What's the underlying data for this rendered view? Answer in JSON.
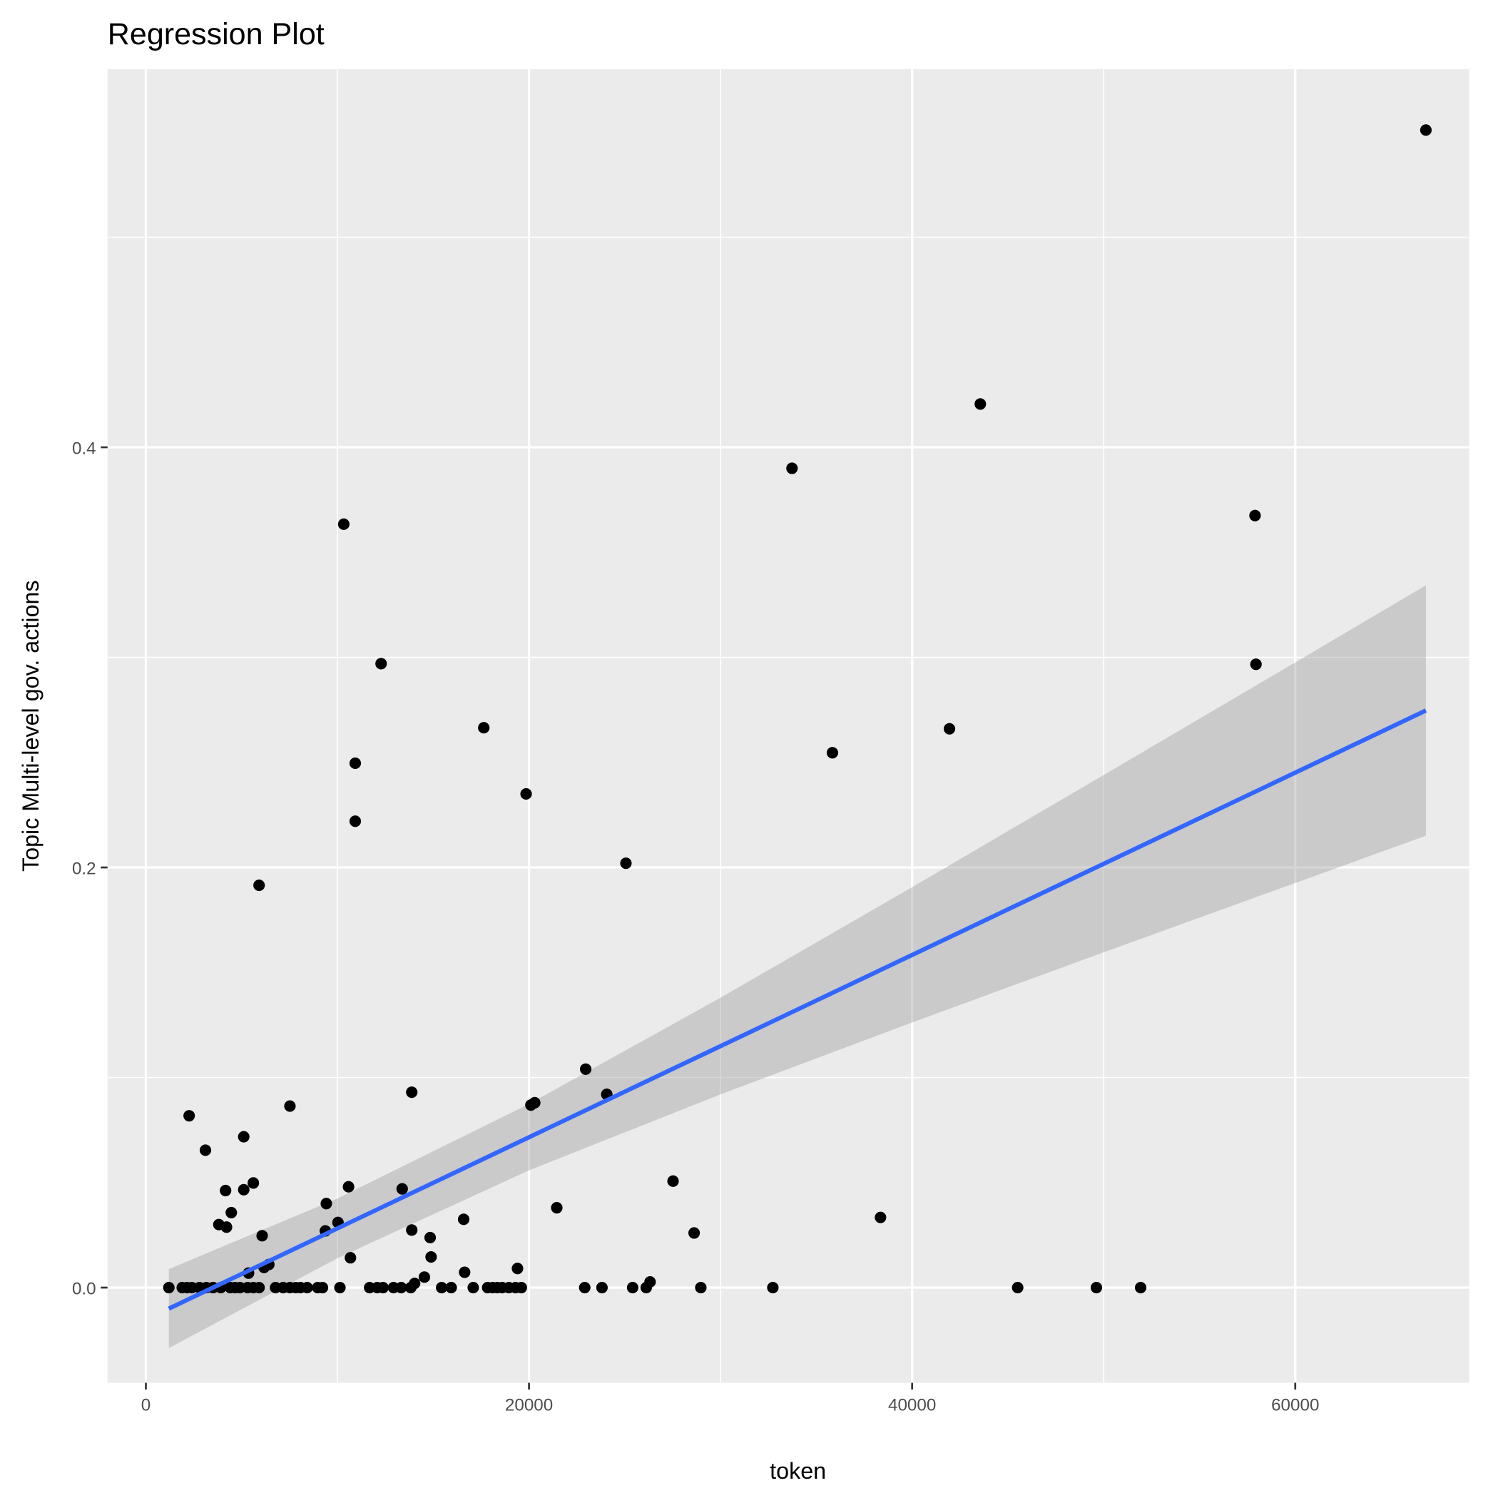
{
  "chart_data": {
    "type": "scatter",
    "title": "Regression Plot",
    "xlabel": "token",
    "ylabel": "Topic Multi-level gov. actions",
    "xlim": [
      -2000,
      69080
    ],
    "ylim": [
      -0.0453,
      0.58
    ],
    "x_ticks": [
      0,
      20000,
      40000,
      60000
    ],
    "x_tick_labels": [
      "0",
      "20000",
      "40000",
      "60000"
    ],
    "x_minor": [
      10000,
      30000,
      50000
    ],
    "y_ticks": [
      0.0,
      0.2,
      0.4
    ],
    "y_tick_labels": [
      "0.0",
      "0.2",
      "0.4"
    ],
    "y_minor": [
      0.1,
      0.3,
      0.5
    ],
    "grid": true,
    "colors": {
      "panel": "#EBEBEB",
      "grid": "#FFFFFF",
      "points": "#000000",
      "line": "#3366FF",
      "ribbon": "#999999"
    },
    "points": [
      [
        66820,
        0.551
      ],
      [
        43560,
        0.4206
      ],
      [
        33730,
        0.39
      ],
      [
        10330,
        0.3634
      ],
      [
        57900,
        0.3675
      ],
      [
        12280,
        0.297
      ],
      [
        57950,
        0.2967
      ],
      [
        17640,
        0.2665
      ],
      [
        41950,
        0.266
      ],
      [
        35840,
        0.2546
      ],
      [
        10930,
        0.2496
      ],
      [
        19850,
        0.235
      ],
      [
        10930,
        0.222
      ],
      [
        25060,
        0.202
      ],
      [
        5910,
        0.1915
      ],
      [
        22960,
        0.104
      ],
      [
        13880,
        0.093
      ],
      [
        24060,
        0.092
      ],
      [
        20300,
        0.088
      ],
      [
        20100,
        0.0869
      ],
      [
        7520,
        0.0864
      ],
      [
        2260,
        0.0818
      ],
      [
        3110,
        0.0654
      ],
      [
        5110,
        0.0718
      ],
      [
        27520,
        0.0507
      ],
      [
        5610,
        0.0498
      ],
      [
        4160,
        0.0462
      ],
      [
        5110,
        0.0466
      ],
      [
        10580,
        0.048
      ],
      [
        13380,
        0.047
      ],
      [
        9420,
        0.04
      ],
      [
        21450,
        0.038
      ],
      [
        4460,
        0.0357
      ],
      [
        3810,
        0.03
      ],
      [
        4210,
        0.0288
      ],
      [
        10030,
        0.031
      ],
      [
        9370,
        0.027
      ],
      [
        16590,
        0.0325
      ],
      [
        38350,
        0.0334
      ],
      [
        28620,
        0.026
      ],
      [
        6070,
        0.0247
      ],
      [
        13880,
        0.0274
      ],
      [
        14840,
        0.0238
      ],
      [
        14890,
        0.0146
      ],
      [
        10680,
        0.0142
      ],
      [
        19400,
        0.0091
      ],
      [
        16640,
        0.0073
      ],
      [
        6420,
        0.011
      ],
      [
        6170,
        0.0096
      ],
      [
        5360,
        0.0069
      ],
      [
        14540,
        0.005
      ],
      [
        26320,
        0.0027
      ],
      [
        14030,
        0.002
      ],
      [
        1200,
        0
      ],
      [
        1900,
        0
      ],
      [
        2150,
        0
      ],
      [
        2400,
        0
      ],
      [
        2800,
        0
      ],
      [
        3160,
        0
      ],
      [
        3510,
        0
      ],
      [
        3910,
        0
      ],
      [
        4410,
        0
      ],
      [
        4660,
        0
      ],
      [
        4910,
        0
      ],
      [
        5310,
        0
      ],
      [
        5610,
        0
      ],
      [
        5910,
        0
      ],
      [
        6770,
        0
      ],
      [
        7170,
        0
      ],
      [
        7520,
        0
      ],
      [
        7820,
        0
      ],
      [
        8070,
        0
      ],
      [
        8420,
        0
      ],
      [
        8970,
        0
      ],
      [
        9220,
        0
      ],
      [
        10130,
        0
      ],
      [
        11680,
        0
      ],
      [
        12080,
        0
      ],
      [
        12380,
        0
      ],
      [
        12930,
        0
      ],
      [
        13330,
        0
      ],
      [
        13830,
        0
      ],
      [
        15440,
        0
      ],
      [
        15940,
        0
      ],
      [
        17090,
        0
      ],
      [
        17840,
        0
      ],
      [
        18100,
        0
      ],
      [
        18350,
        0
      ],
      [
        18600,
        0
      ],
      [
        18950,
        0
      ],
      [
        19300,
        0
      ],
      [
        19600,
        0
      ],
      [
        22910,
        0
      ],
      [
        23810,
        0
      ],
      [
        25410,
        0
      ],
      [
        26120,
        0
      ],
      [
        28970,
        0
      ],
      [
        32730,
        0
      ],
      [
        45510,
        0
      ],
      [
        49620,
        0
      ],
      [
        51930,
        0
      ]
    ],
    "regression": {
      "x": [
        1200,
        66820
      ],
      "y": [
        -0.01,
        0.2747
      ]
    },
    "confidence_band": {
      "x": [
        1200,
        10000,
        20000,
        30000,
        40000,
        50000,
        60000,
        66820
      ],
      "lower": [
        -0.0288,
        0.014,
        0.0558,
        0.092,
        0.1262,
        0.1596,
        0.1926,
        0.2151
      ],
      "upper": [
        0.0088,
        0.0424,
        0.0874,
        0.138,
        0.1906,
        0.244,
        0.2976,
        0.3343
      ]
    }
  }
}
